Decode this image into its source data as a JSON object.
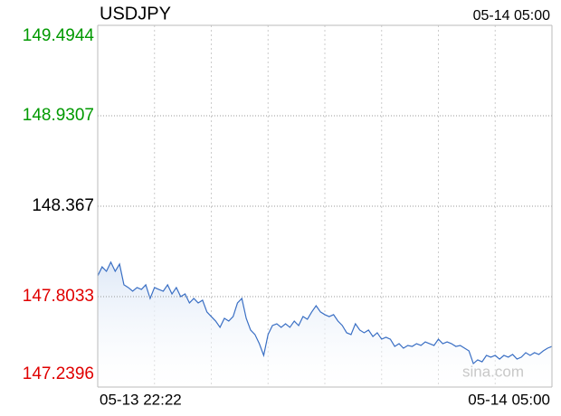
{
  "chart_data": {
    "type": "line",
    "title": "USDJPY",
    "latest_time": "05-14 05:00",
    "x_labels": [
      "05-13 22:22",
      "05-14 05:00"
    ],
    "watermark": "sina.com",
    "ylim": [
      147.2396,
      149.4944
    ],
    "yticks": [
      147.2396,
      147.8033,
      148.367,
      148.9307,
      149.4944
    ],
    "tick_colors": [
      "#e00000",
      "#e00000",
      "#000000",
      "#009900",
      "#009900"
    ],
    "x_grid_divisions": 8,
    "grid": true,
    "series": [
      {
        "name": "USDJPY",
        "color": "#3a6fc4",
        "values": [
          147.933,
          147.989,
          147.961,
          148.018,
          147.961,
          148.006,
          147.877,
          147.86,
          147.837,
          147.86,
          147.848,
          147.877,
          147.792,
          147.86,
          147.848,
          147.837,
          147.877,
          147.82,
          147.86,
          147.803,
          147.82,
          147.764,
          147.792,
          147.764,
          147.781,
          147.708,
          147.679,
          147.651,
          147.612,
          147.668,
          147.651,
          147.679,
          147.764,
          147.792,
          147.668,
          147.595,
          147.567,
          147.51,
          147.437,
          147.567,
          147.623,
          147.634,
          147.612,
          147.634,
          147.612,
          147.651,
          147.623,
          147.679,
          147.662,
          147.708,
          147.747,
          147.708,
          147.691,
          147.679,
          147.691,
          147.651,
          147.623,
          147.578,
          147.567,
          147.634,
          147.595,
          147.578,
          147.595,
          147.555,
          147.578,
          147.538,
          147.55,
          147.538,
          147.493,
          147.51,
          147.482,
          147.499,
          147.493,
          147.51,
          147.499,
          147.521,
          147.51,
          147.499,
          147.538,
          147.51,
          147.521,
          147.51,
          147.493,
          147.499,
          147.482,
          147.465,
          147.386,
          147.409,
          147.397,
          147.437,
          147.426,
          147.437,
          147.414,
          147.437,
          147.426,
          147.443,
          147.414,
          147.426,
          147.454,
          147.437,
          147.454,
          147.443,
          147.465,
          147.482,
          147.493
        ]
      }
    ]
  }
}
